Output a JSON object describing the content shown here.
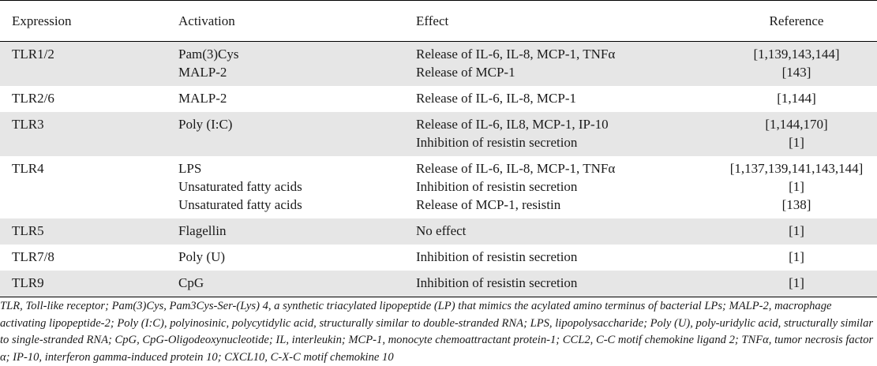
{
  "headers": {
    "expression": "Expression",
    "activation": "Activation",
    "effect": "Effect",
    "reference": "Reference"
  },
  "rows": [
    {
      "expression": "TLR1/2",
      "activation": [
        "Pam(3)Cys",
        "MALP-2"
      ],
      "effect": [
        "Release of IL-6, IL-8, MCP-1, TNFα",
        "Release of MCP-1"
      ],
      "reference": [
        "[1,139,143,144]",
        "[143]"
      ]
    },
    {
      "expression": "TLR2/6",
      "activation": [
        "MALP-2"
      ],
      "effect": [
        "Release of IL-6, IL-8, MCP-1"
      ],
      "reference": [
        "[1,144]"
      ]
    },
    {
      "expression": "TLR3",
      "activation": [
        "Poly (I:C)"
      ],
      "effect": [
        "Release of IL-6, IL8, MCP-1, IP-10",
        "Inhibition of resistin secretion"
      ],
      "reference": [
        "[1,144,170]",
        "[1]"
      ]
    },
    {
      "expression": "TLR4",
      "activation": [
        "LPS",
        "Unsaturated fatty acids",
        "Unsaturated fatty acids"
      ],
      "effect": [
        "Release of IL-6, IL-8, MCP-1, TNFα",
        "Inhibition of resistin secretion",
        "Release of MCP-1, resistin"
      ],
      "reference": [
        "[1,137,139,141,143,144]",
        "[1]",
        "[138]"
      ]
    },
    {
      "expression": "TLR5",
      "activation": [
        "Flagellin"
      ],
      "effect": [
        "No effect"
      ],
      "reference": [
        "[1]"
      ]
    },
    {
      "expression": "TLR7/8",
      "activation": [
        "Poly (U)"
      ],
      "effect": [
        "Inhibition of resistin secretion"
      ],
      "reference": [
        "[1]"
      ]
    },
    {
      "expression": "TLR9",
      "activation": [
        "CpG"
      ],
      "effect": [
        "Inhibition of resistin secretion"
      ],
      "reference": [
        "[1]"
      ]
    }
  ],
  "footnote": "TLR, Toll-like receptor; Pam(3)Cys, Pam3Cys-Ser-(Lys) 4, a synthetic triacylated lipopeptide (LP) that mimics the acylated amino terminus of bacterial LPs; MALP-2, macrophage activating lipopeptide-2; Poly (I:C), polyinosinic, polycytidylic acid, structurally similar to double-stranded RNA; LPS, lipopolysaccharide; Poly (U), poly-uridylic acid, structurally similar to single-stranded RNA; CpG, CpG-Oligodeoxynucleotide; IL, interleukin; MCP-1, monocyte chemoattractant protein-1; CCL2, C-C motif chemokine ligand 2; TNFα, tumor necrosis factor α; IP-10, interferon gamma-induced protein 10; CXCL10, C-X-C motif chemokine 10"
}
